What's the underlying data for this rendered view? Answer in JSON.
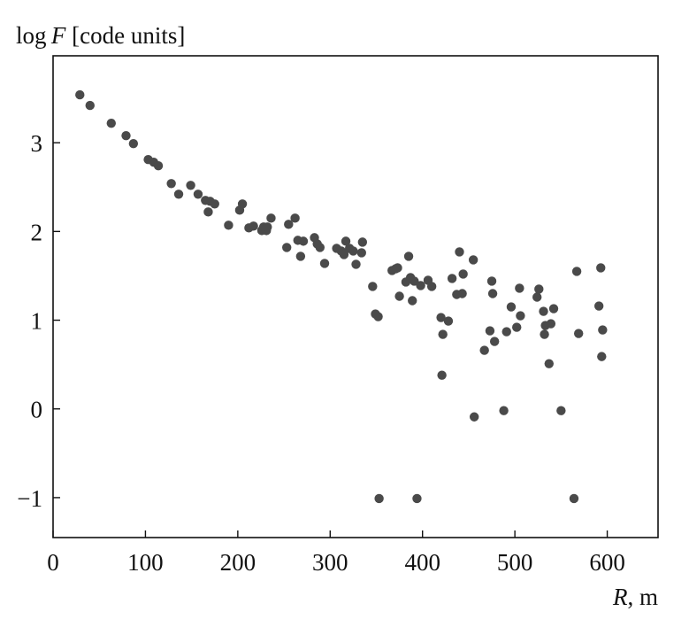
{
  "chart_data": {
    "type": "scatter",
    "title": "",
    "ylabel_parts": {
      "pre": "log ",
      "var": "F",
      "post": " [code units]"
    },
    "xlabel_parts": {
      "var": "R",
      "post": ", m"
    },
    "xlim": [
      0,
      655
    ],
    "ylim": [
      -1.45,
      3.98
    ],
    "xticks": [
      0,
      100,
      200,
      300,
      400,
      500,
      600
    ],
    "yticks": [
      -1,
      0,
      1,
      2,
      3
    ],
    "xtick_labels": [
      "0",
      "100",
      "200",
      "300",
      "400",
      "500",
      "600"
    ],
    "ytick_labels": [
      "−1",
      "0",
      "1",
      "2",
      "3"
    ],
    "grid": false,
    "series": [
      {
        "color": "#4a4a4a",
        "points": [
          [
            29,
            3.54
          ],
          [
            40,
            3.42
          ],
          [
            63,
            3.22
          ],
          [
            79,
            3.08
          ],
          [
            87,
            2.99
          ],
          [
            103,
            2.81
          ],
          [
            109,
            2.78
          ],
          [
            114,
            2.74
          ],
          [
            128,
            2.54
          ],
          [
            136,
            2.42
          ],
          [
            149,
            2.52
          ],
          [
            157,
            2.42
          ],
          [
            165,
            2.35
          ],
          [
            168,
            2.22
          ],
          [
            170,
            2.34
          ],
          [
            175,
            2.31
          ],
          [
            190,
            2.07
          ],
          [
            202,
            2.24
          ],
          [
            205,
            2.31
          ],
          [
            212,
            2.04
          ],
          [
            217,
            2.06
          ],
          [
            226,
            2.01
          ],
          [
            228,
            2.05
          ],
          [
            231,
            2.01
          ],
          [
            232,
            2.05
          ],
          [
            236,
            2.15
          ],
          [
            253,
            1.82
          ],
          [
            255,
            2.08
          ],
          [
            262,
            2.15
          ],
          [
            265,
            1.9
          ],
          [
            268,
            1.72
          ],
          [
            271,
            1.89
          ],
          [
            283,
            1.93
          ],
          [
            286,
            1.86
          ],
          [
            289,
            1.82
          ],
          [
            294,
            1.64
          ],
          [
            307,
            1.81
          ],
          [
            312,
            1.78
          ],
          [
            315,
            1.74
          ],
          [
            317,
            1.89
          ],
          [
            321,
            1.81
          ],
          [
            325,
            1.78
          ],
          [
            328,
            1.63
          ],
          [
            334,
            1.76
          ],
          [
            335,
            1.88
          ],
          [
            346,
            1.38
          ],
          [
            349,
            1.07
          ],
          [
            352,
            1.04
          ],
          [
            353,
            -1.01
          ],
          [
            367,
            1.56
          ],
          [
            371,
            1.58
          ],
          [
            373,
            1.59
          ],
          [
            375,
            1.27
          ],
          [
            382,
            1.43
          ],
          [
            385,
            1.72
          ],
          [
            387,
            1.48
          ],
          [
            389,
            1.22
          ],
          [
            391,
            1.44
          ],
          [
            394,
            -1.01
          ],
          [
            398,
            1.39
          ],
          [
            406,
            1.45
          ],
          [
            410,
            1.38
          ],
          [
            420,
            1.03
          ],
          [
            421,
            0.38
          ],
          [
            422,
            0.84
          ],
          [
            428,
            0.99
          ],
          [
            432,
            1.47
          ],
          [
            437,
            1.29
          ],
          [
            440,
            1.77
          ],
          [
            443,
            1.3
          ],
          [
            444,
            1.52
          ],
          [
            455,
            1.68
          ],
          [
            456,
            -0.09
          ],
          [
            467,
            0.66
          ],
          [
            473,
            0.88
          ],
          [
            475,
            1.44
          ],
          [
            476,
            1.3
          ],
          [
            478,
            0.76
          ],
          [
            488,
            -0.02
          ],
          [
            491,
            0.87
          ],
          [
            496,
            1.15
          ],
          [
            502,
            0.92
          ],
          [
            505,
            1.36
          ],
          [
            506,
            1.05
          ],
          [
            524,
            1.26
          ],
          [
            526,
            1.35
          ],
          [
            531,
            1.1
          ],
          [
            532,
            0.84
          ],
          [
            533,
            0.94
          ],
          [
            537,
            0.51
          ],
          [
            539,
            0.96
          ],
          [
            542,
            1.13
          ],
          [
            550,
            -0.02
          ],
          [
            564,
            -1.01
          ],
          [
            567,
            1.55
          ],
          [
            569,
            0.85
          ],
          [
            591,
            1.16
          ],
          [
            593,
            1.59
          ],
          [
            594,
            0.59
          ],
          [
            595,
            0.89
          ]
        ]
      }
    ]
  }
}
